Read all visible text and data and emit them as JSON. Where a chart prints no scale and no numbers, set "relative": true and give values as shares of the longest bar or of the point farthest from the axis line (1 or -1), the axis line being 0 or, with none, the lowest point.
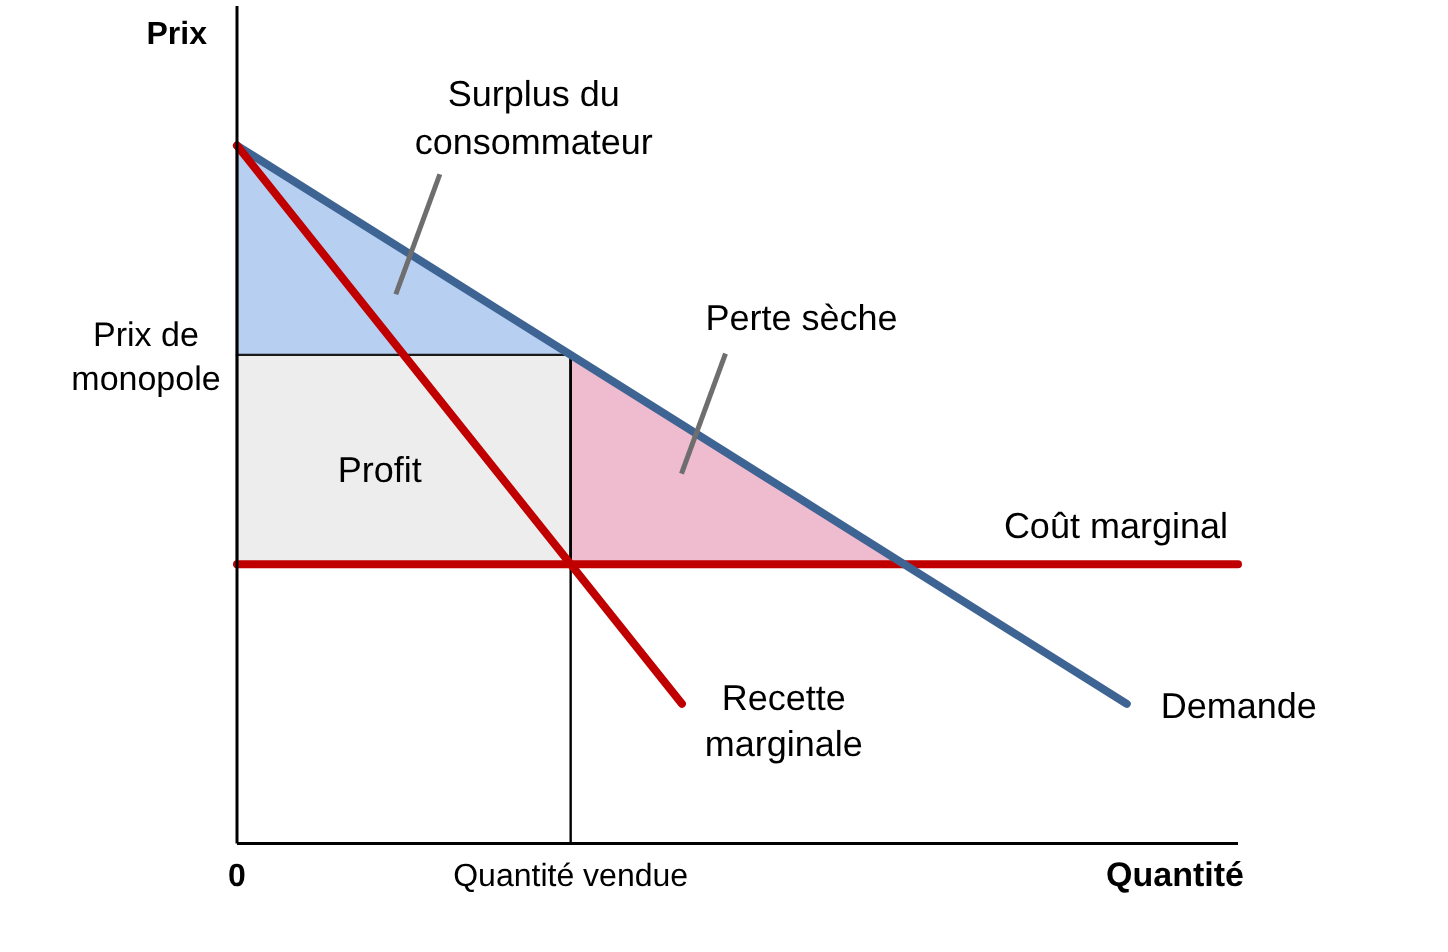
{
  "chart_data": {
    "type": "line",
    "xlabel": "Quantité",
    "ylabel": "Prix",
    "relative": true,
    "categories": [
      "0",
      null,
      null,
      "Quantité vendue",
      null,
      null,
      null,
      null,
      null,
      null
    ],
    "series": [
      {
        "name": "Coût marginal",
        "color": "#c00000",
        "values": [
          0.4,
          0.4,
          0.4,
          0.4,
          0.4,
          0.4,
          0.4,
          0.4,
          0.4,
          0.4
        ]
      },
      {
        "name": "Profit",
        "type": "area",
        "color": "#ededed",
        "values": [
          0.7,
          0.7,
          0.7,
          0.7,
          null,
          null,
          null,
          null,
          null,
          null
        ]
      },
      {
        "name": "Perte sèche",
        "type": "area",
        "color": "#eebbcf",
        "values": [
          null,
          null,
          null,
          0.7,
          0.6,
          0.5,
          0.4,
          null,
          null,
          null
        ]
      },
      {
        "name": "Surplus du consommateur",
        "type": "area",
        "color": "#b7cff0",
        "values": [
          1,
          0.9,
          0.8,
          0.7,
          null,
          null,
          null,
          null,
          null,
          null
        ]
      },
      {
        "name": "Demande",
        "color": "#3e6493",
        "values": [
          1,
          0.9,
          0.8,
          0.7,
          0.6,
          0.5,
          0.4,
          0.3,
          0.2,
          null
        ]
      },
      {
        "name": "Recette marginale",
        "color": "#c00000",
        "values": [
          1,
          0.8,
          0.6,
          0.4,
          0.2,
          null,
          null,
          null,
          null,
          null
        ]
      }
    ],
    "ref_lines": [
      {
        "axis": "x",
        "value": "Quantité vendue",
        "color": "#000000"
      }
    ],
    "annotations": [
      "Prix de monopole"
    ]
  }
}
